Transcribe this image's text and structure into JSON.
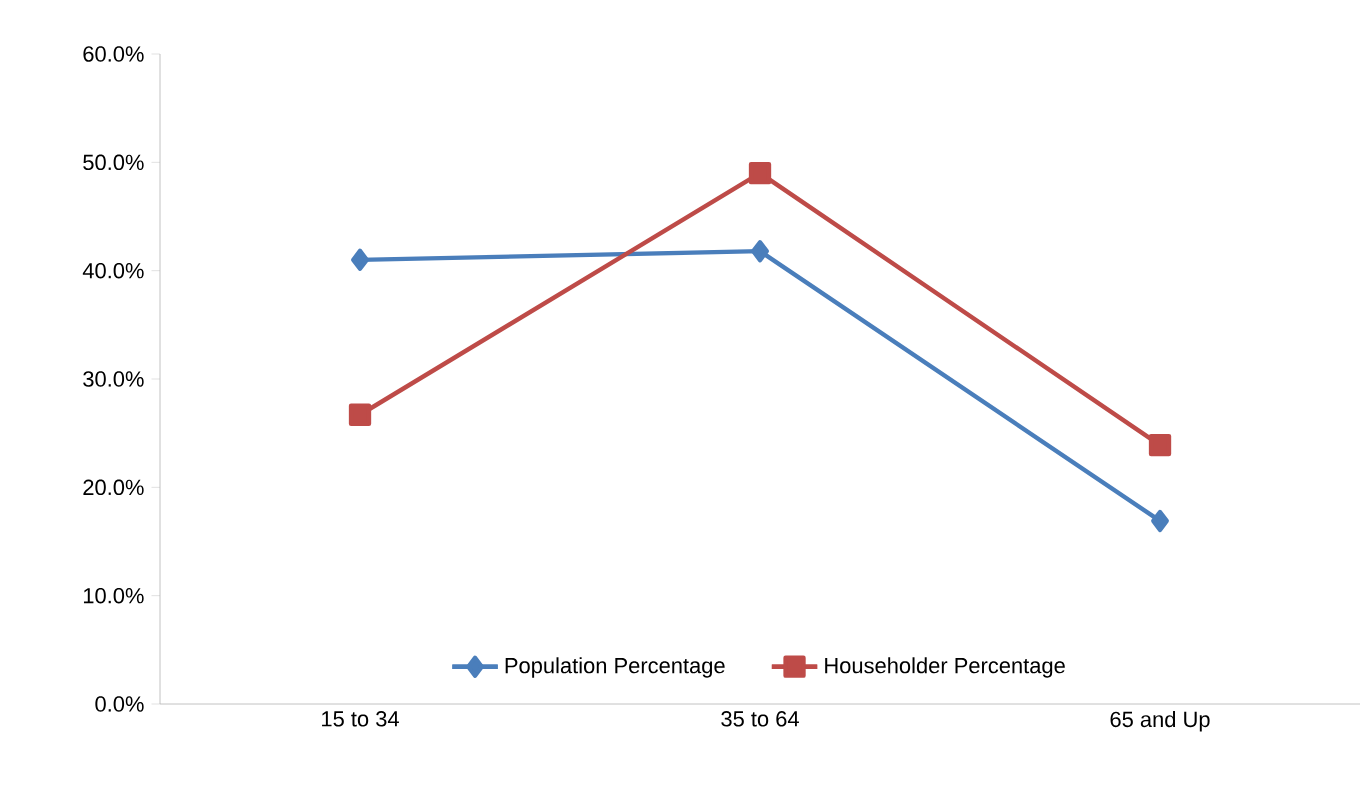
{
  "chart_data": {
    "type": "line",
    "categories": [
      "15 to 34",
      "35 to 64",
      "65 and Up"
    ],
    "series": [
      {
        "name": "Population Percentage",
        "color": "#4a7ebb",
        "marker": "diamond",
        "values": [
          41.0,
          41.8,
          16.9
        ]
      },
      {
        "name": "Householder Percentage",
        "color": "#be4b48",
        "marker": "square",
        "values": [
          26.7,
          49.0,
          23.9
        ]
      }
    ],
    "ylim": [
      0,
      60
    ],
    "yticks": [
      {
        "value": 0,
        "label": "0.0%"
      },
      {
        "value": 10,
        "label": "10.0%"
      },
      {
        "value": 20,
        "label": "20.0%"
      },
      {
        "value": 30,
        "label": "30.0%"
      },
      {
        "value": 40,
        "label": "40.0%"
      },
      {
        "value": 50,
        "label": "50.0%"
      },
      {
        "value": 60,
        "label": "60.0%"
      }
    ],
    "grid": false,
    "legend": "bottom"
  }
}
